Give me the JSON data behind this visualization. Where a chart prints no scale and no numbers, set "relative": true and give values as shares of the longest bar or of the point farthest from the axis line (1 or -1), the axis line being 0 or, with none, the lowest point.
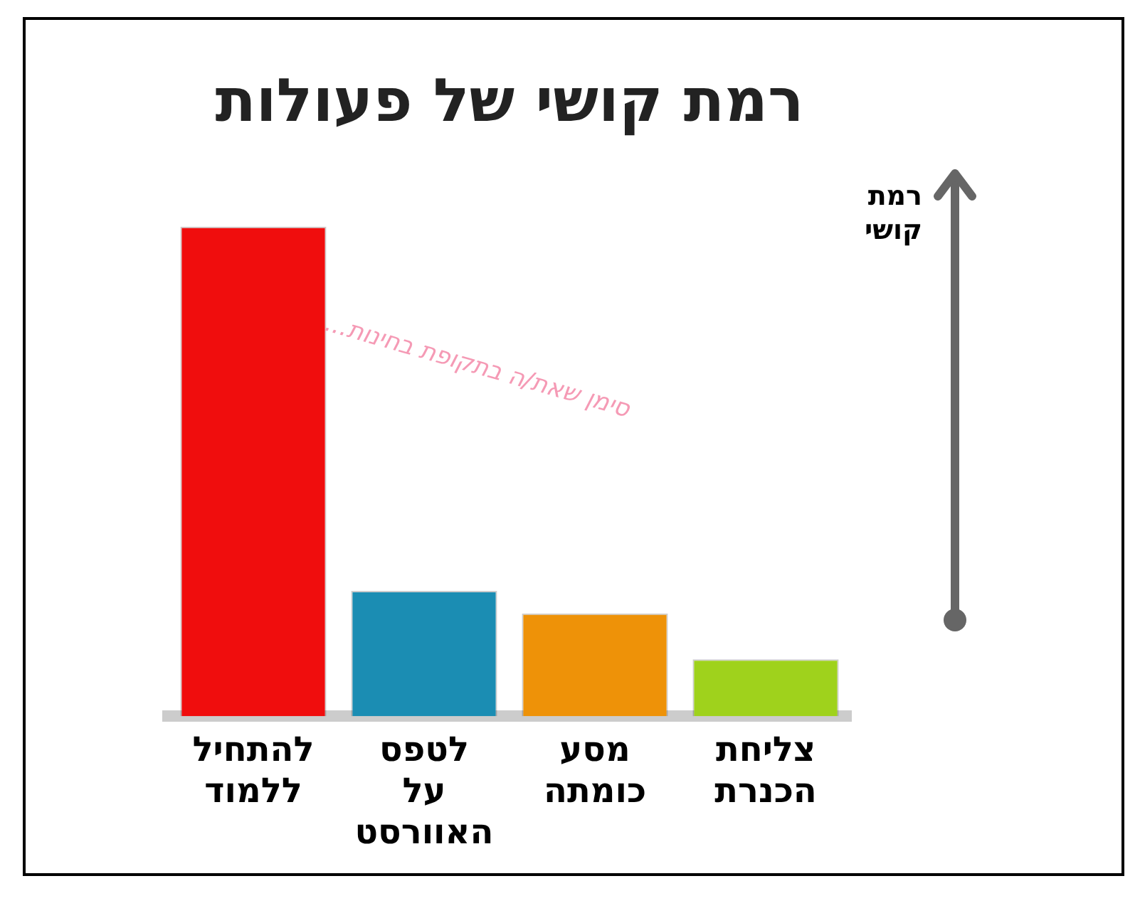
{
  "chart_data": {
    "type": "bar",
    "title": "רמת קושי של פעולות",
    "ylabel": "רמת קושי",
    "relative": true,
    "categories": [
      "להתחיל ללמוד",
      "לטפס על האוורסט",
      "מסע כומתה",
      "צליחת הכנרת"
    ],
    "values": [
      1,
      0.256,
      0.21,
      0.116
    ],
    "colors": [
      "#f00d0d",
      "#1b8db3",
      "#ee9208",
      "#9fd21c"
    ],
    "annotations": [
      "סימן שאת/ה בתקופת בחינות..."
    ],
    "grid": false,
    "legend": false
  }
}
